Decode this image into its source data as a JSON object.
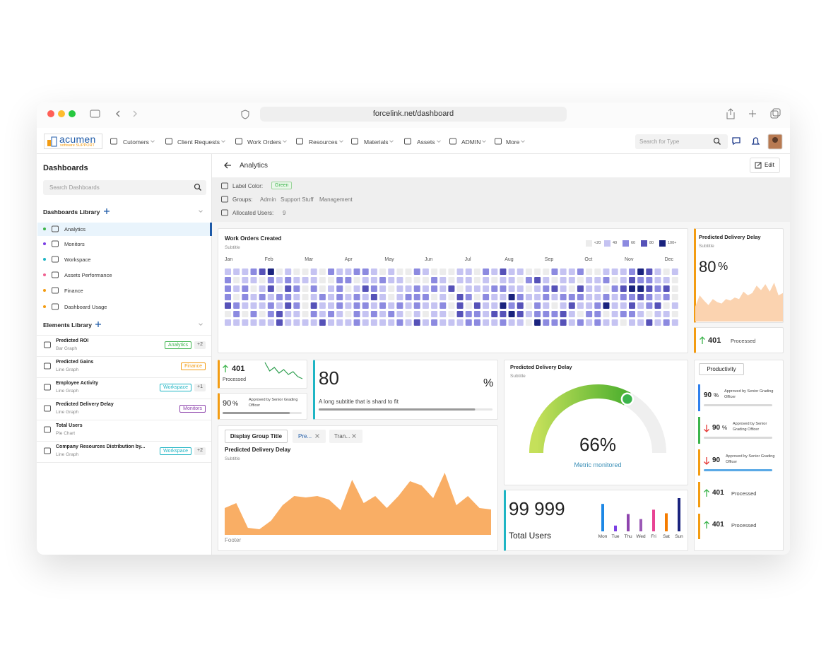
{
  "browser": {
    "url": "forcelink.net/dashboard"
  },
  "nav": {
    "logo": "acumen",
    "logo_sub": "software SUPPORT",
    "items": [
      "Cutomers",
      "Client Requests",
      "Work Orders",
      "Resources",
      "Materials",
      "Assets",
      "ADMIN",
      "More"
    ],
    "search": "Search for Type"
  },
  "sidebar": {
    "title": "Dashboards",
    "search": "Search Dashboards",
    "library_title": "Dashboards Library",
    "dashboards": [
      {
        "name": "Analytics",
        "color": "#3cb44b"
      },
      {
        "name": "Monitors",
        "color": "#7b3fe4"
      },
      {
        "name": "Workspace",
        "color": "#1fb5c4"
      },
      {
        "name": "Assets Performance",
        "color": "#f06292"
      },
      {
        "name": "Finance",
        "color": "#f39c12"
      },
      {
        "name": "Dashboard Usage",
        "color": "#f39c12"
      }
    ],
    "elements_title": "Elements Library",
    "elements": [
      {
        "name": "Predicted ROI",
        "type": "Bar Graph",
        "tag": "Analytics",
        "tag_color": "#3cb44b",
        "extra": "+2"
      },
      {
        "name": "Predicted Gains",
        "type": "Line Graph",
        "tag": "Finance",
        "tag_color": "#f39c12"
      },
      {
        "name": "Employee Activity",
        "type": "Line Graph",
        "tag": "Workspace",
        "tag_color": "#1fb5c4",
        "extra": "+1"
      },
      {
        "name": "Predicted Delivery Delay",
        "type": "Line Graph",
        "tag": "Monitors",
        "tag_color": "#8e44ad"
      },
      {
        "name": "Total Users",
        "type": "Pie Chart"
      },
      {
        "name": "Company Resources Distribution by...",
        "type": "Line Graph",
        "tag": "Workspace",
        "tag_color": "#1fb5c4",
        "extra": "+2"
      }
    ]
  },
  "header": {
    "title": "Analytics",
    "edit": "Edit"
  },
  "info": {
    "label_color_label": "Label Color:",
    "label_color": "Green",
    "groups_label": "Groups:",
    "groups": [
      "Admin",
      "Support Stuff",
      "Management"
    ],
    "users_label": "Allocated Users:",
    "users": 9
  },
  "heatmap": {
    "type": "heatmap",
    "title": "Work Orders Created",
    "subtitle": "Subtitle",
    "months": [
      "Jan",
      "Feb",
      "Mar",
      "Apr",
      "May",
      "Jun",
      "Jul",
      "Aug",
      "Sep",
      "Oct",
      "Nov",
      "Dec"
    ],
    "legend": [
      {
        "value": 20,
        "label": "<20",
        "color": "#ececec"
      },
      {
        "value": 40,
        "label": "40",
        "color": "#c5c3f2"
      },
      {
        "value": 60,
        "label": "60",
        "color": "#8c8ae0"
      },
      {
        "value": 80,
        "label": "80",
        "color": "#5652b8"
      },
      {
        "value": 100,
        "label": "100+",
        "color": "#1a237e"
      }
    ],
    "rows": [
      [
        40,
        40,
        40,
        60,
        80,
        100,
        10,
        40,
        10,
        10,
        40,
        10,
        60,
        40,
        40,
        60,
        60,
        40,
        10,
        40,
        10,
        10,
        60,
        40,
        10,
        10,
        10,
        40,
        40,
        10,
        60,
        40,
        80,
        40,
        40,
        10,
        10,
        10,
        60,
        40,
        40,
        60,
        10,
        10,
        40,
        40,
        40,
        60,
        100,
        80,
        40,
        10,
        40
      ],
      [
        60,
        10,
        40,
        40,
        10,
        60,
        40,
        60,
        40,
        40,
        40,
        10,
        10,
        60,
        60,
        10,
        40,
        40,
        60,
        40,
        40,
        10,
        10,
        10,
        60,
        40,
        10,
        40,
        40,
        10,
        40,
        10,
        40,
        40,
        10,
        60,
        80,
        40,
        10,
        40,
        40,
        10,
        40,
        40,
        60,
        10,
        40,
        80,
        60,
        60,
        40,
        40,
        10
      ],
      [
        60,
        40,
        60,
        10,
        40,
        80,
        10,
        80,
        60,
        10,
        60,
        10,
        40,
        60,
        10,
        40,
        80,
        60,
        40,
        10,
        40,
        40,
        60,
        40,
        60,
        40,
        80,
        10,
        40,
        40,
        40,
        60,
        60,
        40,
        40,
        10,
        40,
        60,
        80,
        40,
        10,
        80,
        40,
        40,
        10,
        60,
        80,
        100,
        100,
        80,
        60,
        80,
        10
      ],
      [
        60,
        10,
        60,
        40,
        60,
        40,
        60,
        60,
        40,
        10,
        40,
        60,
        40,
        60,
        40,
        60,
        40,
        80,
        40,
        10,
        40,
        60,
        60,
        60,
        10,
        40,
        10,
        80,
        60,
        10,
        60,
        40,
        40,
        100,
        60,
        40,
        40,
        60,
        40,
        60,
        60,
        60,
        40,
        40,
        60,
        40,
        60,
        60,
        80,
        60,
        40,
        60,
        10
      ],
      [
        80,
        60,
        40,
        40,
        40,
        60,
        40,
        80,
        60,
        10,
        80,
        40,
        40,
        60,
        40,
        60,
        60,
        40,
        60,
        40,
        60,
        40,
        60,
        40,
        40,
        60,
        10,
        80,
        10,
        80,
        40,
        40,
        100,
        60,
        80,
        10,
        60,
        40,
        10,
        40,
        80,
        40,
        40,
        60,
        100,
        40,
        40,
        80,
        40,
        60,
        80,
        10,
        40
      ],
      [
        10,
        60,
        10,
        60,
        10,
        60,
        80,
        40,
        40,
        10,
        60,
        40,
        60,
        40,
        10,
        60,
        40,
        60,
        40,
        60,
        40,
        10,
        40,
        10,
        40,
        40,
        10,
        80,
        60,
        60,
        40,
        80,
        80,
        100,
        80,
        40,
        60,
        60,
        60,
        80,
        40,
        10,
        60,
        60,
        10,
        40,
        60,
        60,
        40,
        10,
        40,
        40,
        10
      ],
      [
        40,
        40,
        40,
        40,
        40,
        40,
        80,
        40,
        40,
        40,
        40,
        80,
        40,
        40,
        40,
        60,
        40,
        40,
        40,
        40,
        60,
        40,
        80,
        40,
        60,
        40,
        40,
        40,
        60,
        60,
        40,
        40,
        60,
        40,
        40,
        10,
        100,
        60,
        60,
        80,
        40,
        60,
        40,
        60,
        40,
        40,
        10,
        40,
        40,
        80,
        40,
        60,
        40
      ]
    ]
  },
  "delay_card": {
    "type": "area",
    "title": "Predicted Delivery Delay",
    "subtitle": "Subtitle",
    "value": 80,
    "unit": "%",
    "values": [
      20,
      35,
      28,
      22,
      30,
      26,
      24,
      30,
      28,
      32,
      30,
      40,
      35,
      38,
      48,
      42,
      50,
      40,
      52,
      35,
      38
    ],
    "color": "#fbd3b0"
  },
  "processed_card": {
    "value": 401,
    "label": "Processed"
  },
  "kpi_spark": {
    "type": "line",
    "value": 401,
    "label": "Processed",
    "values": [
      27,
      15,
      20,
      12,
      17,
      10,
      14,
      7,
      4
    ],
    "color": "#2e9e4f"
  },
  "kpi_approved": {
    "value": 90,
    "unit": "%",
    "label": "Approved by Senior Grading Officer",
    "progress": 85
  },
  "kpi_long": {
    "value": 80,
    "unit": "%",
    "label": "A long subtitle that is shard to fit",
    "progress": 90
  },
  "group_card": {
    "type": "area",
    "tabs": [
      "Display Group Title",
      "Pre...",
      "Tran..."
    ],
    "title": "Predicted Delivery Delay",
    "subtitle": "Subtitle",
    "footer": "Footer",
    "values": [
      38,
      45,
      10,
      8,
      20,
      42,
      55,
      53,
      55,
      50,
      35,
      78,
      45,
      55,
      38,
      55,
      76,
      70,
      52,
      88,
      42,
      55,
      38,
      36
    ],
    "color": "#f9ae65"
  },
  "gauge": {
    "type": "gauge",
    "title": "Predicted Delivery Delay",
    "subtitle": "Subtitle",
    "value": 66,
    "value_label": "66%",
    "caption": "Metric monitored"
  },
  "users": {
    "type": "bar",
    "value_label": "99 999",
    "label": "Total Users",
    "categories": [
      "Mon",
      "Tue",
      "Thu",
      "Wed",
      "Fri",
      "Sat",
      "Sun"
    ],
    "values": [
      38,
      8,
      24,
      17,
      30,
      25,
      46
    ],
    "colors": [
      "#1e88e5",
      "#7b3fe4",
      "#8e44ad",
      "#9b59b6",
      "#e84393",
      "#f57c00",
      "#1a237e"
    ]
  },
  "productivity": {
    "title": "Productivity",
    "items": [
      {
        "value": 90,
        "unit": "%",
        "label": "Approved by Senior Grading Officer",
        "border": "#2f80ed",
        "bar_color": "#d9d9d9"
      },
      {
        "value": 90,
        "unit": "%",
        "label": "Approved by Senior Grading Officer",
        "border": "#3cb44b",
        "arrow": "down",
        "bar_color": "#d9d9d9"
      },
      {
        "value": 90,
        "label": "Approved by Senior Grading Officer",
        "border": "#f39c12",
        "arrow": "down",
        "bar_color": "#5aa9e6"
      },
      {
        "value": 401,
        "label": "Processed",
        "border": "#f39c12",
        "arrow": "up"
      },
      {
        "value": 401,
        "label": "Processed",
        "border": "#f39c12",
        "arrow": "up"
      }
    ]
  }
}
